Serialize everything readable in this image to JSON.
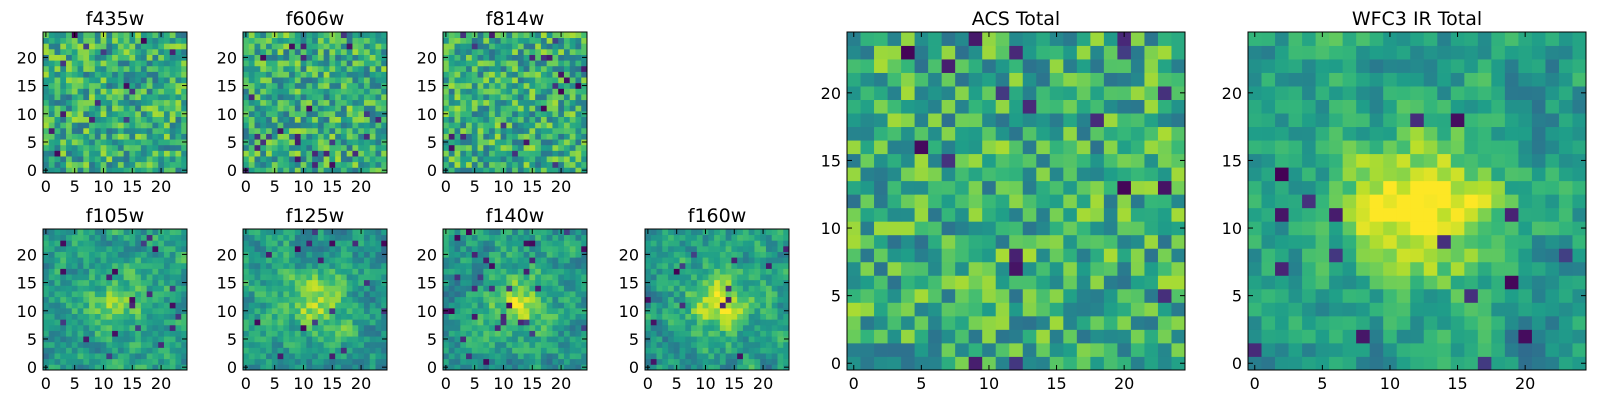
{
  "chart_data": [
    {
      "type": "heatmap",
      "title": "f435w",
      "xlim": [
        -0.5,
        24.5
      ],
      "ylim": [
        -0.5,
        24.5
      ],
      "xticks": [
        0,
        5,
        10,
        15,
        20
      ],
      "yticks": [
        0,
        5,
        10,
        15,
        20
      ],
      "colormap": "viridis",
      "grid": false,
      "values": "not legible; rendered as speckled yellow-green noise field",
      "seed": 11,
      "peak": 0.0
    },
    {
      "type": "heatmap",
      "title": "f606w",
      "xlim": [
        -0.5,
        24.5
      ],
      "ylim": [
        -0.5,
        24.5
      ],
      "xticks": [
        0,
        5,
        10,
        15,
        20
      ],
      "yticks": [
        0,
        5,
        10,
        15,
        20
      ],
      "colormap": "viridis",
      "grid": false,
      "values": "not legible; rendered as speckled yellow-green noise field",
      "seed": 23,
      "peak": 0.0
    },
    {
      "type": "heatmap",
      "title": "f814w",
      "xlim": [
        -0.5,
        24.5
      ],
      "ylim": [
        -0.5,
        24.5
      ],
      "xticks": [
        0,
        5,
        10,
        15,
        20
      ],
      "yticks": [
        0,
        5,
        10,
        15,
        20
      ],
      "colormap": "viridis",
      "grid": false,
      "values": "not legible; rendered as speckled yellow-green noise field",
      "seed": 37,
      "peak": 0.0
    },
    {
      "type": "heatmap",
      "title": "f105w",
      "xlim": [
        -0.5,
        24.5
      ],
      "ylim": [
        -0.5,
        24.5
      ],
      "xticks": [
        0,
        5,
        10,
        15,
        20
      ],
      "yticks": [
        0,
        5,
        10,
        15,
        20
      ],
      "colormap": "viridis",
      "grid": false,
      "values": "not legible; smoothed noise with faint central brightening",
      "seed": 41,
      "peak": 0.25
    },
    {
      "type": "heatmap",
      "title": "f125w",
      "xlim": [
        -0.5,
        24.5
      ],
      "ylim": [
        -0.5,
        24.5
      ],
      "xticks": [
        0,
        5,
        10,
        15,
        20
      ],
      "yticks": [
        0,
        5,
        10,
        15,
        20
      ],
      "colormap": "viridis",
      "grid": false,
      "values": "not legible; smoothed noise with faint central brightening",
      "seed": 53,
      "peak": 0.3
    },
    {
      "type": "heatmap",
      "title": "f140w",
      "xlim": [
        -0.5,
        24.5
      ],
      "ylim": [
        -0.5,
        24.5
      ],
      "xticks": [
        0,
        5,
        10,
        15,
        20
      ],
      "yticks": [
        0,
        5,
        10,
        15,
        20
      ],
      "colormap": "viridis",
      "grid": false,
      "values": "not legible; smoothed noise with faint central brightening",
      "seed": 67,
      "peak": 0.3
    },
    {
      "type": "heatmap",
      "title": "f160w",
      "xlim": [
        -0.5,
        24.5
      ],
      "ylim": [
        -0.5,
        24.5
      ],
      "xticks": [
        0,
        5,
        10,
        15,
        20
      ],
      "yticks": [
        0,
        5,
        10,
        15,
        20
      ],
      "colormap": "viridis",
      "grid": false,
      "values": "not legible; smoothed noise with central source near (13, 11)",
      "seed": 79,
      "peak": 0.4
    },
    {
      "type": "heatmap",
      "title": "ACS Total",
      "xlim": [
        -0.5,
        24.5
      ],
      "ylim": [
        -0.5,
        24.5
      ],
      "xticks": [
        0,
        5,
        10,
        15,
        20
      ],
      "yticks": [
        0,
        5,
        10,
        15,
        20
      ],
      "colormap": "viridis",
      "grid": false,
      "values": "not legible; noisy yellow-green field, slight central brightening",
      "seed": 97,
      "peak": 0.2
    },
    {
      "type": "heatmap",
      "title": "WFC3 IR Total",
      "xlim": [
        -0.5,
        24.5
      ],
      "ylim": [
        -0.5,
        24.5
      ],
      "xticks": [
        0,
        5,
        10,
        15,
        20
      ],
      "yticks": [
        0,
        5,
        10,
        15,
        20
      ],
      "colormap": "viridis",
      "grid": false,
      "values": "not legible; bright source centered near (13, 12) on teal background",
      "seed": 131,
      "peak": 0.55
    }
  ]
}
